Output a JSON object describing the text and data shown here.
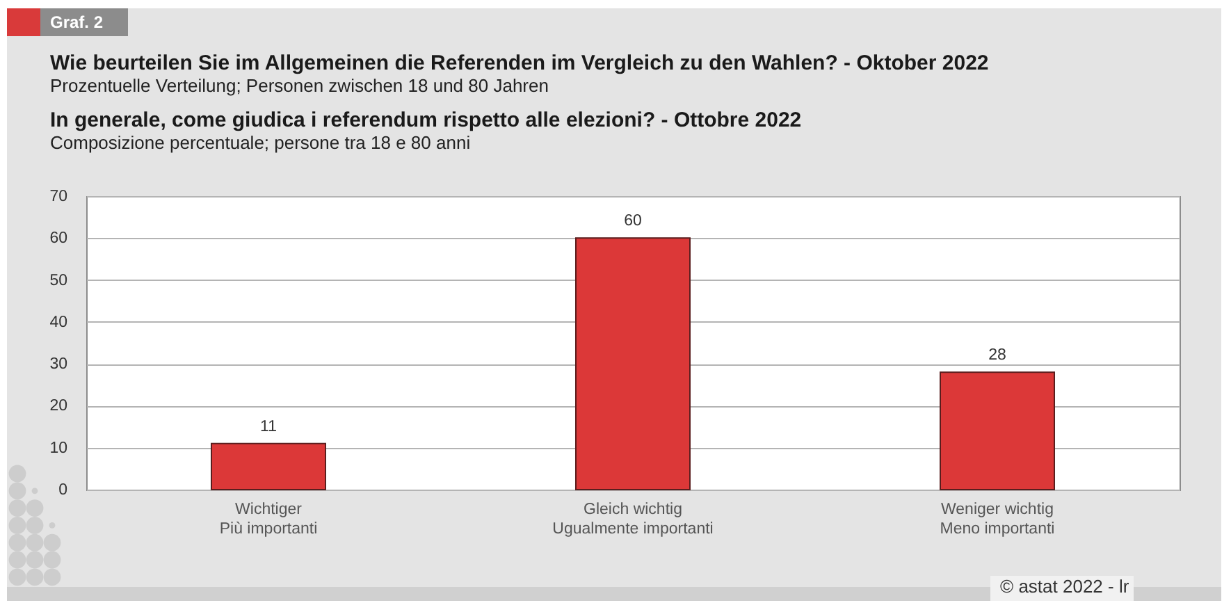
{
  "chart_data": {
    "type": "bar",
    "title": "Wie beurteilen Sie im Allgemeinen die Referenden im Vergleich zu den Wahlen? - Oktober 2022",
    "subtitle": "Prozentuelle Verteilung; Personen zwischen 18 und 80 Jahren",
    "annotations": [
      "Graf. 2",
      "In generale, come giudica i referendum rispetto alle elezioni? - Ottobre 2022",
      "Composizione percentuale; persone tra 18 e 80 anni",
      "© astat 2022 - lr"
    ],
    "categories": [
      "Wichtiger\nPiù importanti",
      "Gleich wichtig\nUgualmente importanti",
      "Weniger wichtig\nMeno importanti"
    ],
    "values": [
      11,
      60,
      28
    ],
    "color": "#dc3838",
    "ylim": [
      0,
      70
    ],
    "yticks": [
      0,
      10,
      20,
      30,
      40,
      50,
      60,
      70
    ],
    "grid": "y",
    "data_labels": true
  }
}
